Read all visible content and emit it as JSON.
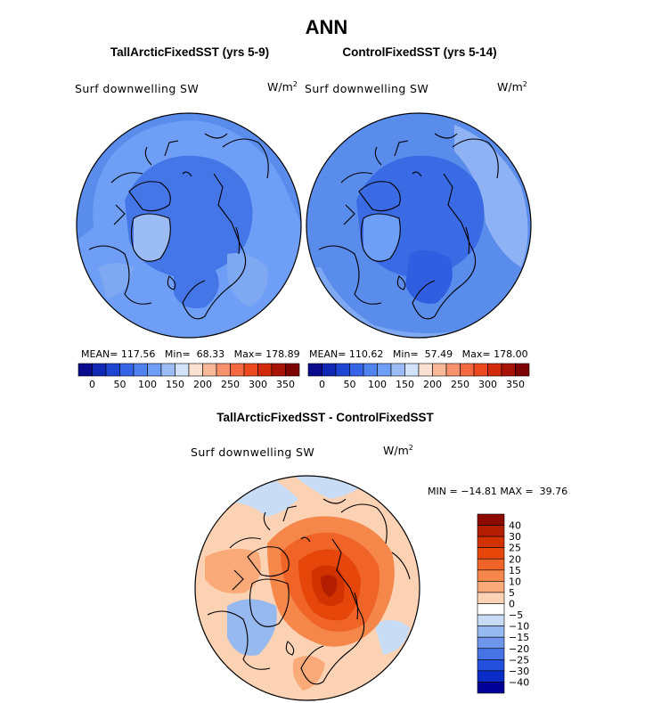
{
  "title": "ANN",
  "chart_data": [
    {
      "type": "heatmap",
      "title": "TallArcticFixedSST (yrs 5-9)",
      "variable": "Surf downwelling SW",
      "units_base": "W/m",
      "units_exp": "2",
      "projection": "north polar stereographic",
      "stats": {
        "mean_label": "MEAN=",
        "mean": "117.56",
        "min_label": "Min=",
        "min": "68.33",
        "max_label": "Max=",
        "max": "178.89"
      },
      "colorbar": {
        "ticks": [
          "0",
          "50",
          "100",
          "150",
          "200",
          "250",
          "300",
          "350"
        ],
        "colors": [
          "#0a0a8c",
          "#1028b4",
          "#1e46d2",
          "#3664e6",
          "#5082f0",
          "#6e9ef5",
          "#9cbcf5",
          "#d2e2f8",
          "#fae1d2",
          "#f9b999",
          "#f7916c",
          "#f4693f",
          "#ec4a1e",
          "#d22a0a",
          "#a71406",
          "#7d0202"
        ]
      }
    },
    {
      "type": "heatmap",
      "title": "ControlFixedSST (yrs 5-14)",
      "variable": "Surf downwelling SW",
      "units_base": "W/m",
      "units_exp": "2",
      "projection": "north polar stereographic",
      "stats": {
        "mean_label": "MEAN=",
        "mean": "110.62",
        "min_label": "Min=",
        "min": "57.49",
        "max_label": "Max=",
        "max": "178.00"
      },
      "colorbar": {
        "ticks": [
          "0",
          "50",
          "100",
          "150",
          "200",
          "250",
          "300",
          "350"
        ],
        "colors": [
          "#0a0a8c",
          "#1028b4",
          "#1e46d2",
          "#3664e6",
          "#5082f0",
          "#6e9ef5",
          "#9cbcf5",
          "#d2e2f8",
          "#fae1d2",
          "#f9b999",
          "#f7916c",
          "#f4693f",
          "#ec4a1e",
          "#d22a0a",
          "#a71406",
          "#7d0202"
        ]
      }
    },
    {
      "type": "heatmap",
      "title": "TallArcticFixedSST - ControlFixedSST",
      "variable": "Surf downwelling SW",
      "units_base": "W/m",
      "units_exp": "2",
      "projection": "north polar stereographic",
      "stats": {
        "min_label": "MIN =",
        "min": "−14.81",
        "max_label": "MAX =",
        "max": "39.76"
      },
      "colorbar": {
        "orientation": "vertical",
        "ticks": [
          "40",
          "30",
          "25",
          "20",
          "15",
          "10",
          "5",
          "0",
          "−5",
          "−10",
          "−15",
          "−20",
          "−25",
          "−30",
          "−40"
        ],
        "colors": [
          "#8c0a00",
          "#b41e00",
          "#d23200",
          "#e6460a",
          "#f06428",
          "#f5874b",
          "#f9aa78",
          "#fcd2b4",
          "#ffffff",
          "#c8dcf5",
          "#96b9f0",
          "#6e96eb",
          "#4673e6",
          "#2350dc",
          "#0a2dc8",
          "#000096"
        ]
      }
    }
  ]
}
